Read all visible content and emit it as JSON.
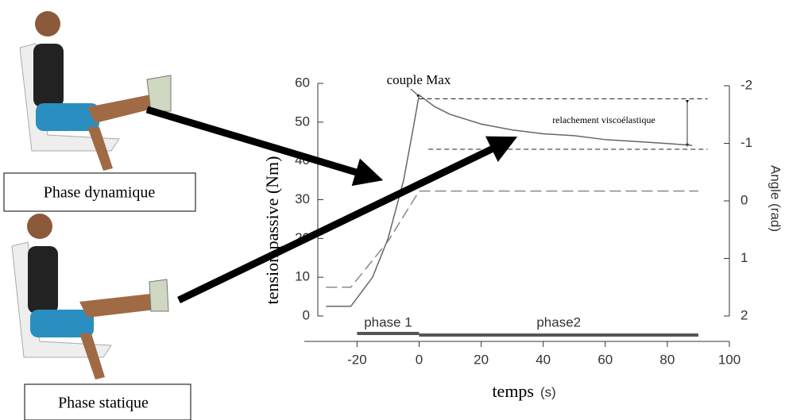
{
  "chart_data": {
    "type": "line",
    "annotations": {
      "peak": "couple Max",
      "relaxation": "relachement viscoélastique",
      "dynamic": "Phase dynamique",
      "static": "Phase statique"
    },
    "xlabel": "temps",
    "xunit": "(s)",
    "ylabel": "tension passive (Nm)",
    "y2label": "Angle (rad)",
    "xlim": [
      -37,
      100
    ],
    "xticks": [
      -20,
      0,
      20,
      40,
      60,
      80,
      100
    ],
    "ylim": [
      0,
      60
    ],
    "yticks": [
      0,
      10,
      20,
      30,
      40,
      50,
      60
    ],
    "y2lim": [
      2,
      -2
    ],
    "y2ticks": [
      -2,
      -1,
      0,
      1,
      2
    ],
    "series": [
      {
        "color": "#666666",
        "x": [
          -30,
          -22,
          -15,
          -10,
          -5,
          -2,
          0,
          5,
          10,
          20,
          30,
          40,
          50,
          60,
          70,
          80,
          88
        ],
        "values": [
          2.5,
          2.5,
          10,
          20,
          35,
          48,
          57,
          54,
          52,
          49.5,
          48,
          47,
          46.5,
          45.5,
          45,
          44.5,
          44
        ]
      },
      {
        "color": "#888888",
        "axis": "y2",
        "dashed": true,
        "x": [
          -30,
          -22,
          -10,
          0,
          90
        ],
        "values": [
          1.5,
          1.5,
          0.7,
          -0.17,
          -0.17
        ]
      }
    ],
    "hlines": [
      {
        "value": 56,
        "start": 0,
        "end": 93
      },
      {
        "value": 43,
        "start": 3,
        "end": 93
      }
    ],
    "phases": [
      {
        "label": "phase 1",
        "start": -20,
        "end": 0
      },
      {
        "label": "phase2",
        "start": 0,
        "end": 90
      }
    ]
  }
}
